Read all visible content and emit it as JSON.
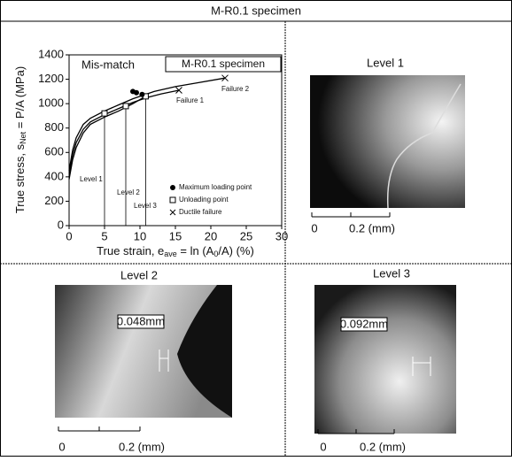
{
  "header": {
    "title": "M-R0.1 specimen"
  },
  "chart_data": {
    "type": "line",
    "inset_title": "Mis-match",
    "inset_box_label": "M-R0.1 specimen",
    "x_label": {
      "text": "True strain, e",
      "sub": "ave",
      "rest": " = ln (A",
      "sub2": "0",
      "rest2": "/A) (%)"
    },
    "y_label": {
      "text": "True stress, s",
      "sub": "Net",
      "rest": " = P/A (MPa)"
    },
    "xlim": [
      0,
      30
    ],
    "xticks": [
      0,
      5,
      10,
      15,
      20,
      25,
      30
    ],
    "ylim": [
      0,
      1400
    ],
    "yticks": [
      0,
      200,
      400,
      600,
      800,
      1000,
      1200,
      1400
    ],
    "curves": [
      {
        "x": [
          0,
          0.5,
          1,
          2,
          3,
          5,
          7,
          9,
          12,
          15,
          18,
          22
        ],
        "y": [
          450,
          620,
          720,
          830,
          880,
          940,
          990,
          1040,
          1100,
          1140,
          1170,
          1210
        ]
      },
      {
        "x": [
          0,
          0.5,
          1,
          2,
          3,
          5,
          7,
          9,
          11,
          13,
          15.5
        ],
        "y": [
          400,
          580,
          680,
          790,
          850,
          910,
          960,
          1010,
          1050,
          1080,
          1110
        ]
      },
      {
        "x": [
          0,
          0.5,
          1,
          2,
          3,
          5,
          7,
          9,
          10.8
        ],
        "y": [
          380,
          540,
          640,
          760,
          830,
          890,
          940,
          1000,
          1060
        ]
      }
    ],
    "max_loading_points": {
      "x": [
        9,
        9.5,
        10.3
      ],
      "y": [
        1100,
        1090,
        1075
      ]
    },
    "unloading_points": {
      "x": [
        5,
        8,
        10.8
      ],
      "y": [
        920,
        980,
        1060
      ]
    },
    "ductile_failure": {
      "x": [
        15.5,
        22
      ],
      "y": [
        1110,
        1210
      ]
    },
    "annotations": [
      "Level 1",
      "Level 2",
      "Level 3",
      "Failure 1",
      "Failure 2"
    ],
    "legend": [
      "Maximum loading point",
      "Unloading point",
      "Ductile failure"
    ]
  },
  "panels": [
    {
      "title": "Level 1",
      "scale_zero": "0",
      "scale_label": "0.2  (mm)"
    },
    {
      "title": "Level 2",
      "scale_zero": "0",
      "scale_label": "0.2  (mm)",
      "measure": "0.048mm"
    },
    {
      "title": "Level 3",
      "scale_zero": "0",
      "scale_label": "0.2  (mm)",
      "measure": "0.092mm"
    }
  ]
}
